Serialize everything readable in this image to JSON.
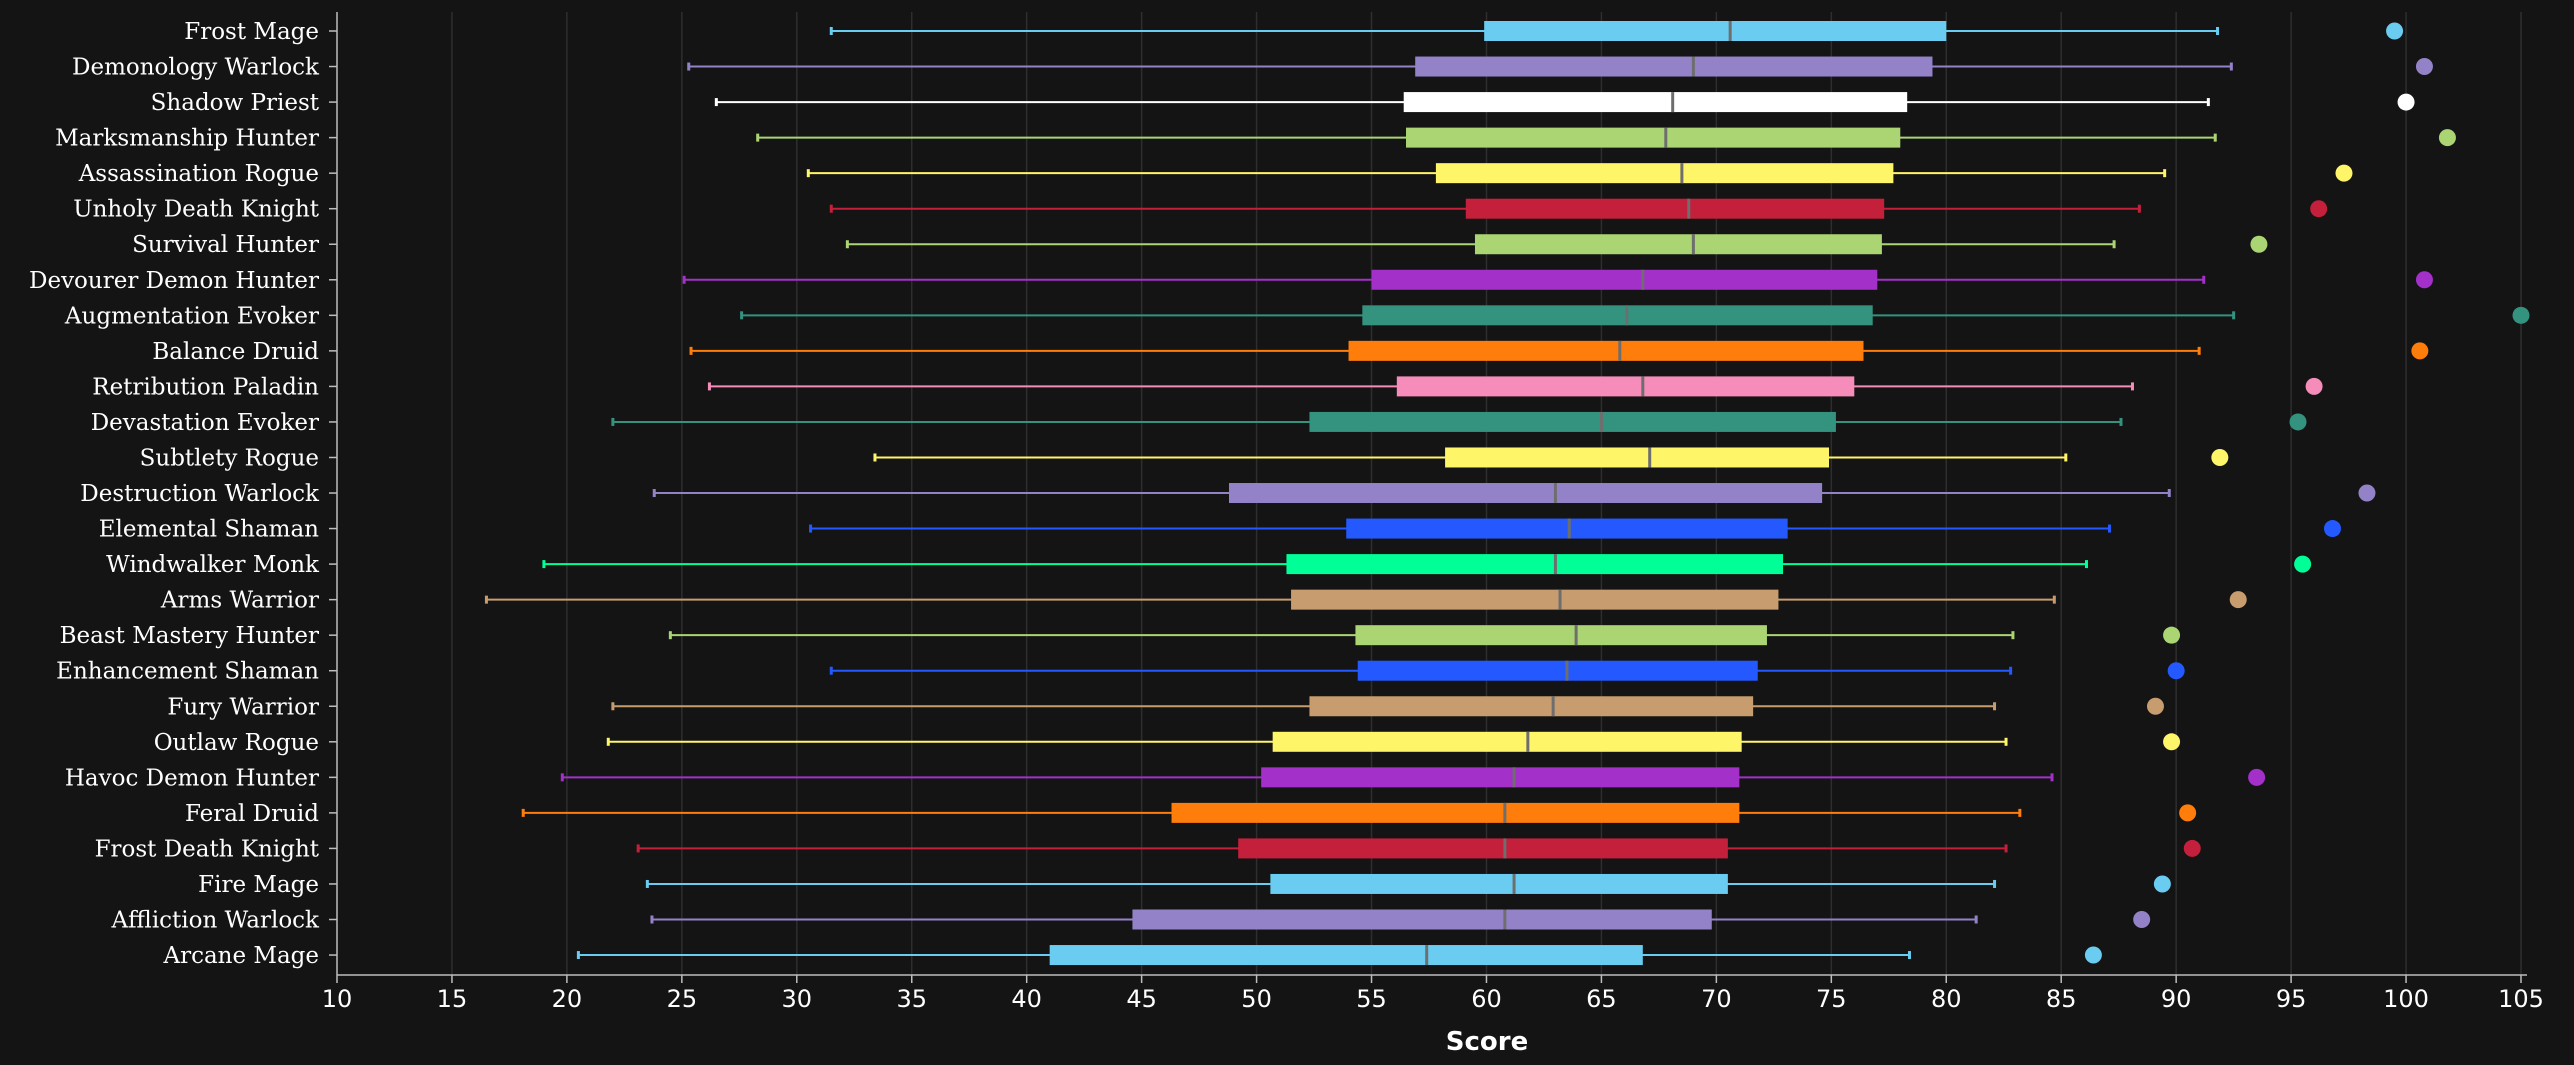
{
  "chart_data": {
    "type": "box",
    "title": "",
    "xlabel": "Score",
    "ylabel": "",
    "xlim": [
      10,
      105
    ],
    "xticks": [
      10,
      15,
      20,
      25,
      30,
      35,
      40,
      45,
      50,
      55,
      60,
      65,
      70,
      75,
      80,
      85,
      90,
      95,
      100,
      105
    ],
    "grid": "vertical",
    "orientation": "horizontal",
    "categories": [
      "Frost Mage",
      "Demonology Warlock",
      "Shadow Priest",
      "Marksmanship Hunter",
      "Assassination Rogue",
      "Unholy Death Knight",
      "Survival Hunter",
      "Devourer Demon Hunter",
      "Augmentation Evoker",
      "Balance Druid",
      "Retribution Paladin",
      "Devastation Evoker",
      "Subtlety Rogue",
      "Destruction Warlock",
      "Elemental Shaman",
      "Windwalker Monk",
      "Arms Warrior",
      "Beast Mastery Hunter",
      "Enhancement Shaman",
      "Fury Warrior",
      "Outlaw Rogue",
      "Havoc Demon Hunter",
      "Feral Druid",
      "Frost Death Knight",
      "Fire Mage",
      "Affliction Warlock",
      "Arcane Mage"
    ],
    "colors": [
      "#69ccf0",
      "#9482c9",
      "#ffffff",
      "#abd473",
      "#fff569",
      "#c41f3b",
      "#abd473",
      "#a330c9",
      "#33937f",
      "#ff7d0a",
      "#f58cba",
      "#33937f",
      "#fff569",
      "#9482c9",
      "#2459ff",
      "#00ff96",
      "#c79c6e",
      "#abd473",
      "#2459ff",
      "#c79c6e",
      "#fff569",
      "#a330c9",
      "#ff7d0a",
      "#c41f3b",
      "#69ccf0",
      "#9482c9",
      "#69ccf0"
    ],
    "whisker_low": [
      31.5,
      25.3,
      26.5,
      28.3,
      30.5,
      31.5,
      32.2,
      25.1,
      27.6,
      25.4,
      26.2,
      22.0,
      33.4,
      23.8,
      30.6,
      19.0,
      16.5,
      24.5,
      31.5,
      22.0,
      21.8,
      19.8,
      18.1,
      23.1,
      23.5,
      23.7,
      20.5
    ],
    "q1": [
      59.9,
      56.9,
      56.4,
      56.5,
      57.8,
      59.1,
      59.5,
      55.0,
      54.6,
      54.0,
      56.1,
      52.3,
      58.2,
      48.8,
      53.9,
      51.3,
      51.5,
      54.3,
      54.4,
      52.3,
      50.7,
      50.2,
      46.3,
      49.2,
      50.6,
      44.6,
      41.0
    ],
    "median": [
      70.6,
      69.0,
      68.1,
      67.8,
      68.5,
      68.8,
      69.0,
      66.8,
      66.1,
      65.8,
      66.8,
      65.0,
      67.1,
      63.0,
      63.6,
      63.0,
      63.2,
      63.9,
      63.5,
      62.9,
      61.8,
      61.2,
      60.8,
      60.8,
      61.2,
      60.8,
      57.4
    ],
    "q3": [
      80.0,
      79.4,
      78.3,
      78.0,
      77.7,
      77.3,
      77.2,
      77.0,
      76.8,
      76.4,
      76.0,
      75.2,
      74.9,
      74.6,
      73.1,
      72.9,
      72.7,
      72.2,
      71.8,
      71.6,
      71.1,
      71.0,
      71.0,
      70.5,
      70.5,
      69.8,
      66.8
    ],
    "whisker_high": [
      91.8,
      92.4,
      91.4,
      91.7,
      89.5,
      88.4,
      87.3,
      91.2,
      92.5,
      91.0,
      88.1,
      87.6,
      85.2,
      89.7,
      87.1,
      86.1,
      84.7,
      82.9,
      82.8,
      82.1,
      82.6,
      84.6,
      83.2,
      82.6,
      82.1,
      81.3,
      78.4
    ],
    "outlier": [
      99.5,
      100.8,
      100.0,
      101.8,
      97.3,
      96.2,
      93.6,
      100.8,
      105.0,
      100.6,
      96.0,
      95.3,
      91.9,
      98.3,
      96.8,
      95.5,
      92.7,
      89.8,
      90.0,
      89.1,
      89.8,
      93.5,
      90.5,
      90.7,
      89.4,
      88.5,
      86.4
    ]
  }
}
